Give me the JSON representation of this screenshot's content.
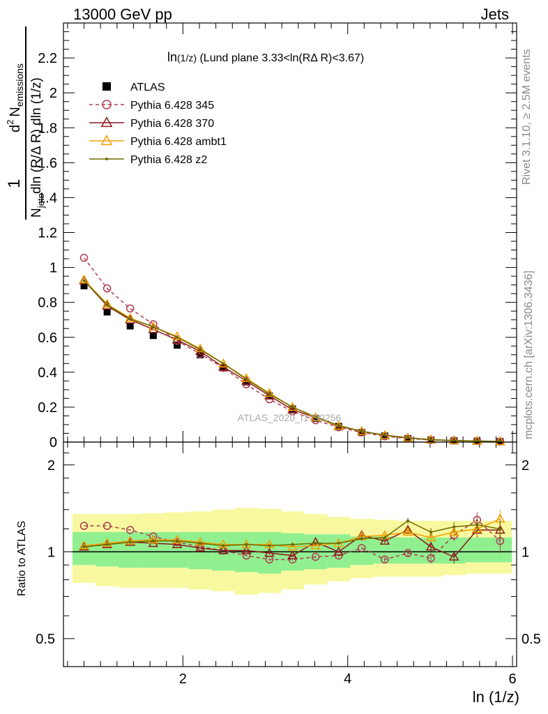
{
  "header": {
    "left": "13000 GeV pp",
    "right": "Jets"
  },
  "side_labels": {
    "rivet": "Rivet 3.1.10, ≥ 2.5M events",
    "mcplots": "mcplots.cern.ch [arXiv:1306.3436]"
  },
  "watermark": "ATLAS_2020_I1790256",
  "chart_data": {
    "type": "line",
    "title": {
      "main": "ln",
      "sub": "(1/z)",
      "rest": " (Lund plane 3.33<ln(RΔ R)<3.67)"
    },
    "xlabel": "ln (1/z)",
    "ylabel": "1/N_jets dln(R/ΔR) dln(1/z) d² N_emissions",
    "ylabel_parts": {
      "one": "1",
      "d2": "d",
      "two": "2",
      "N": "N",
      "emissions": "emissions",
      "Njets": "N",
      "jets": "jets",
      "den": "dln (R/Δ R) dln (1/z)"
    },
    "ratio_ylabel": "Ratio to ATLAS",
    "xlim": [
      0.55,
      6.05
    ],
    "ylim_main": [
      0,
      2.4
    ],
    "ylim_ratio": [
      0.4,
      2.4
    ],
    "x_ticks": [
      2,
      4,
      6
    ],
    "y_ticks_main": [
      0,
      0.2,
      0.4,
      0.6,
      0.8,
      1,
      1.2,
      1.4,
      1.6,
      1.8,
      2,
      2.2
    ],
    "y_tick_labels_main": [
      "0",
      "0.2",
      "0.4",
      "0.6",
      "0.8",
      "1",
      "1.2",
      "1.4",
      "1.6",
      "1.8",
      "2",
      "2.2"
    ],
    "y_ticks_ratio": [
      0.5,
      1,
      2
    ],
    "y_tick_labels_ratio": [
      "0.5",
      "1",
      "2"
    ],
    "x": [
      0.8,
      1.08,
      1.36,
      1.64,
      1.93,
      2.21,
      2.49,
      2.77,
      3.05,
      3.33,
      3.61,
      3.89,
      4.17,
      4.45,
      4.73,
      5.01,
      5.29,
      5.57,
      5.85
    ],
    "x_edges": [
      0.66,
      0.94,
      1.22,
      1.5,
      1.79,
      2.07,
      2.35,
      2.63,
      2.91,
      3.19,
      3.47,
      3.75,
      4.03,
      4.31,
      4.59,
      4.87,
      5.15,
      5.43,
      5.71,
      5.99
    ],
    "atlas": [
      0.895,
      0.745,
      0.665,
      0.61,
      0.555,
      0.5,
      0.425,
      0.345,
      0.265,
      0.19,
      0.135,
      0.09,
      0.055,
      0.035,
      0.02,
      0.012,
      0.008,
      0.005,
      0.003
    ],
    "band_inner": [
      [
        0.9,
        1.17
      ],
      [
        0.89,
        1.17
      ],
      [
        0.88,
        1.17
      ],
      [
        0.88,
        1.17
      ],
      [
        0.88,
        1.17
      ],
      [
        0.87,
        1.17
      ],
      [
        0.86,
        1.17
      ],
      [
        0.85,
        1.17
      ],
      [
        0.84,
        1.17
      ],
      [
        0.86,
        1.16
      ],
      [
        0.87,
        1.15
      ],
      [
        0.88,
        1.15
      ],
      [
        0.9,
        1.13
      ],
      [
        0.91,
        1.13
      ],
      [
        0.91,
        1.12
      ],
      [
        0.91,
        1.12
      ],
      [
        0.91,
        1.12
      ],
      [
        0.92,
        1.12
      ],
      [
        0.92,
        1.12
      ]
    ],
    "band_outer": [
      [
        0.78,
        1.35
      ],
      [
        0.76,
        1.35
      ],
      [
        0.75,
        1.35
      ],
      [
        0.75,
        1.36
      ],
      [
        0.75,
        1.37
      ],
      [
        0.74,
        1.38
      ],
      [
        0.73,
        1.4
      ],
      [
        0.71,
        1.42
      ],
      [
        0.72,
        1.41
      ],
      [
        0.74,
        1.38
      ],
      [
        0.77,
        1.35
      ],
      [
        0.79,
        1.32
      ],
      [
        0.81,
        1.3
      ],
      [
        0.82,
        1.29
      ],
      [
        0.82,
        1.28
      ],
      [
        0.82,
        1.28
      ],
      [
        0.83,
        1.28
      ],
      [
        0.84,
        1.28
      ],
      [
        0.84,
        1.28
      ]
    ],
    "series": [
      {
        "name": "ATLAS",
        "color": "#000000",
        "marker": "square",
        "values": [
          0.895,
          0.745,
          0.665,
          0.61,
          0.555,
          0.5,
          0.425,
          0.345,
          0.265,
          0.19,
          0.135,
          0.09,
          0.055,
          0.035,
          0.02,
          0.012,
          0.008,
          0.005,
          0.003
        ]
      },
      {
        "name": "Pythia 6.428 345",
        "color": "#b03a50",
        "marker": "circle",
        "dashed": true,
        "values": [
          1.055,
          0.88,
          0.765,
          0.675,
          0.58,
          0.505,
          0.425,
          0.33,
          0.245,
          0.175,
          0.125,
          0.085,
          0.055,
          0.033,
          0.02,
          0.012,
          0.009,
          0.006,
          0.003
        ],
        "ratio": [
          1.23,
          1.23,
          1.19,
          1.13,
          1.08,
          1.04,
          1.01,
          0.97,
          0.94,
          0.94,
          0.96,
          0.97,
          1.03,
          0.94,
          0.99,
          0.95,
          1.14,
          1.29,
          1.09
        ],
        "ratio_err": [
          0.0,
          0.0,
          0.0,
          0.0,
          0.0,
          0.0,
          0.0,
          0.0,
          0.01,
          0.01,
          0.01,
          0.01,
          0.01,
          0.02,
          0.03,
          0.04,
          0.05,
          0.08,
          0.1
        ]
      },
      {
        "name": "Pythia 6.428 370",
        "color": "#8b1a1a",
        "marker": "triangle-open",
        "values": [
          0.925,
          0.78,
          0.7,
          0.645,
          0.585,
          0.52,
          0.43,
          0.35,
          0.265,
          0.185,
          0.14,
          0.09,
          0.062,
          0.038,
          0.023,
          0.013,
          0.008,
          0.006,
          0.004
        ],
        "ratio": [
          1.04,
          1.06,
          1.08,
          1.07,
          1.06,
          1.03,
          1.01,
          1.01,
          0.99,
          0.97,
          1.08,
          1.0,
          1.14,
          1.09,
          1.19,
          1.04,
          0.96,
          1.19,
          1.19
        ],
        "ratio_err": [
          0.0,
          0.0,
          0.0,
          0.0,
          0.0,
          0.0,
          0.0,
          0.0,
          0.01,
          0.01,
          0.01,
          0.01,
          0.02,
          0.02,
          0.03,
          0.04,
          0.05,
          0.07,
          0.09
        ]
      },
      {
        "name": "Pythia 6.428 ambt1",
        "color": "#f0a000",
        "marker": "triangle-open",
        "values": [
          0.93,
          0.79,
          0.71,
          0.66,
          0.605,
          0.535,
          0.45,
          0.365,
          0.28,
          0.2,
          0.14,
          0.093,
          0.062,
          0.039,
          0.024,
          0.014,
          0.009,
          0.006,
          0.004
        ],
        "ratio": [
          1.05,
          1.07,
          1.09,
          1.1,
          1.1,
          1.08,
          1.06,
          1.06,
          1.06,
          1.04,
          1.05,
          1.07,
          1.13,
          1.14,
          1.17,
          1.12,
          1.17,
          1.2,
          1.3
        ],
        "ratio_err": [
          0.0,
          0.0,
          0.0,
          0.0,
          0.0,
          0.0,
          0.0,
          0.0,
          0.01,
          0.01,
          0.01,
          0.01,
          0.02,
          0.02,
          0.03,
          0.04,
          0.05,
          0.07,
          0.1
        ]
      },
      {
        "name": "Pythia 6.428 z2",
        "color": "#6b6b00",
        "marker": "dot",
        "values": [
          0.925,
          0.785,
          0.705,
          0.66,
          0.6,
          0.53,
          0.45,
          0.36,
          0.275,
          0.2,
          0.145,
          0.095,
          0.062,
          0.04,
          0.025,
          0.014,
          0.009,
          0.006,
          0.004
        ],
        "ratio": [
          1.04,
          1.06,
          1.08,
          1.09,
          1.09,
          1.07,
          1.05,
          1.06,
          1.05,
          1.06,
          1.07,
          1.07,
          1.11,
          1.12,
          1.28,
          1.17,
          1.22,
          1.24,
          1.2
        ],
        "ratio_err": [
          0.0,
          0.0,
          0.0,
          0.0,
          0.0,
          0.0,
          0.0,
          0.0,
          0.01,
          0.01,
          0.01,
          0.01,
          0.02,
          0.02,
          0.03,
          0.04,
          0.05,
          0.07,
          0.09
        ]
      }
    ],
    "colors": {
      "band_inner": "#90f090",
      "band_outer": "#f8f8a0"
    }
  }
}
